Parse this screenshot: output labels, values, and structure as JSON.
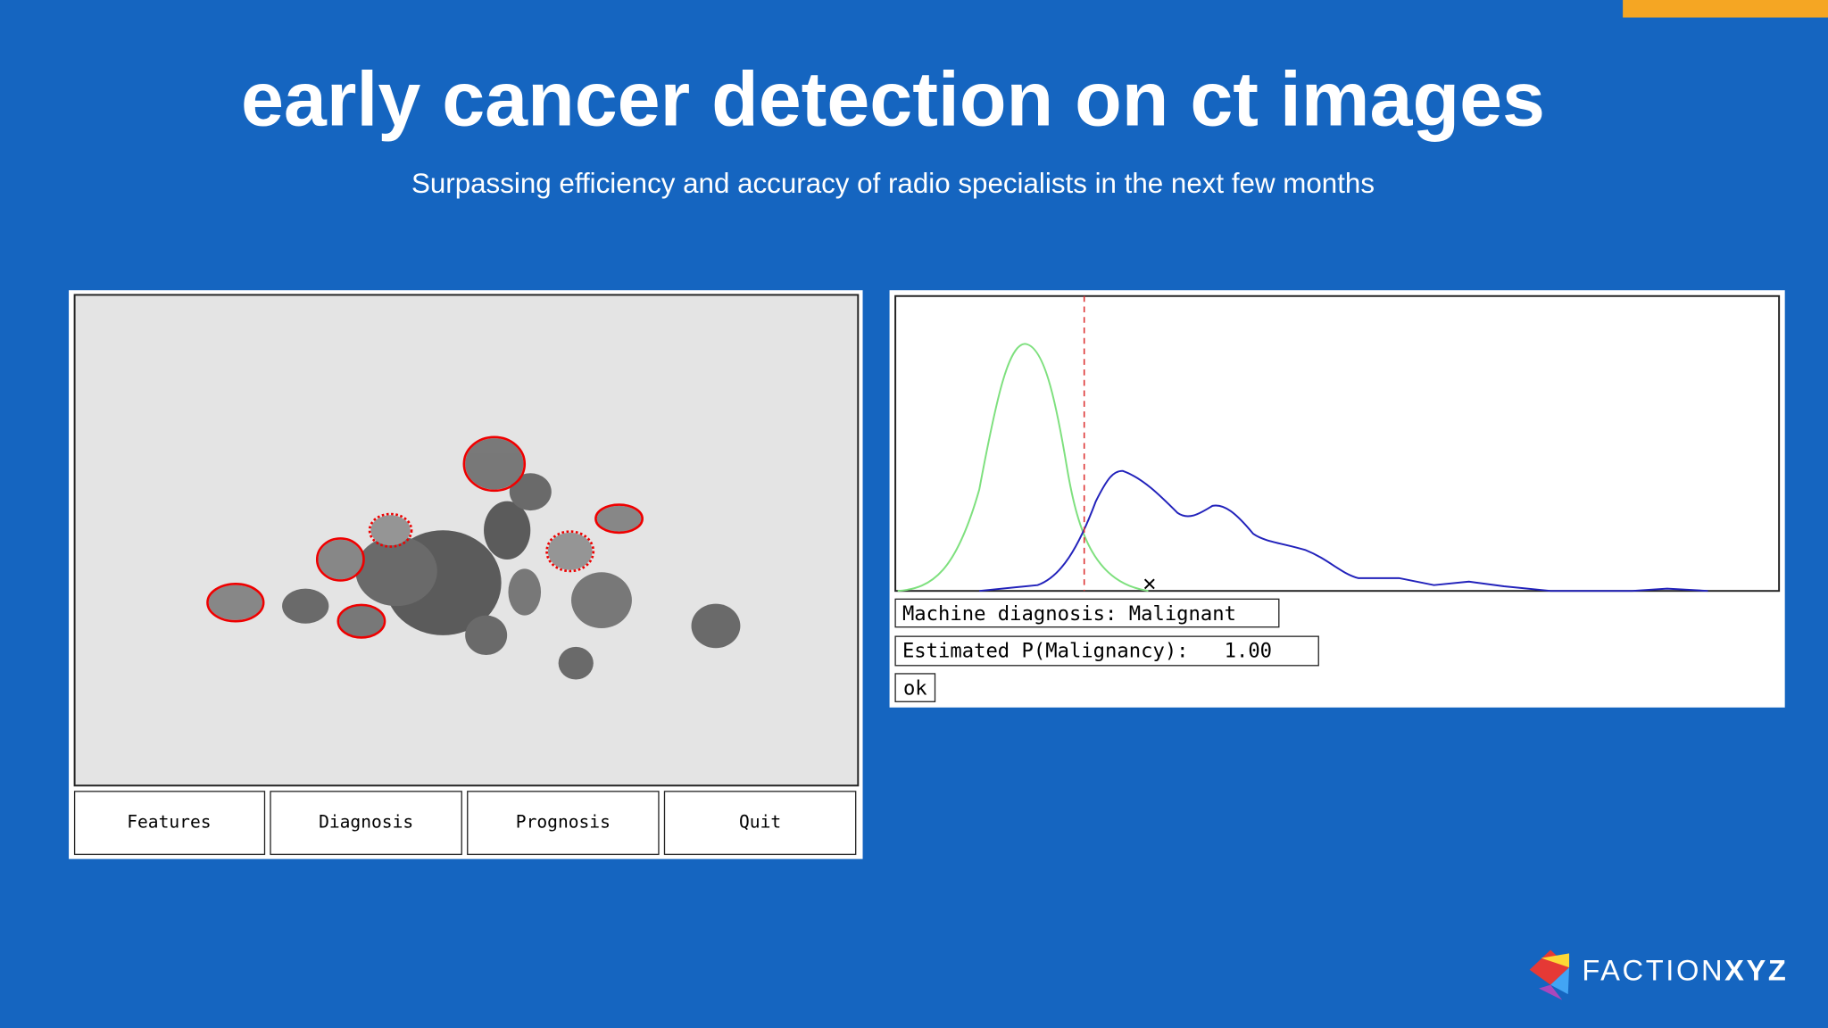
{
  "header": {
    "title": "early cancer detection on ct images",
    "subtitle": "Surpassing efficiency and accuracy of radio specialists in the next few months"
  },
  "left_panel": {
    "buttons": [
      "Features",
      "Diagnosis",
      "Prognosis",
      "Quit"
    ]
  },
  "right_panel": {
    "diagnosis": "Machine diagnosis: Malignant",
    "probability": "Estimated P(Malignancy):   1.00",
    "ok": "ok"
  },
  "logo": {
    "brand": "FACTION",
    "suffix": "XYZ"
  }
}
